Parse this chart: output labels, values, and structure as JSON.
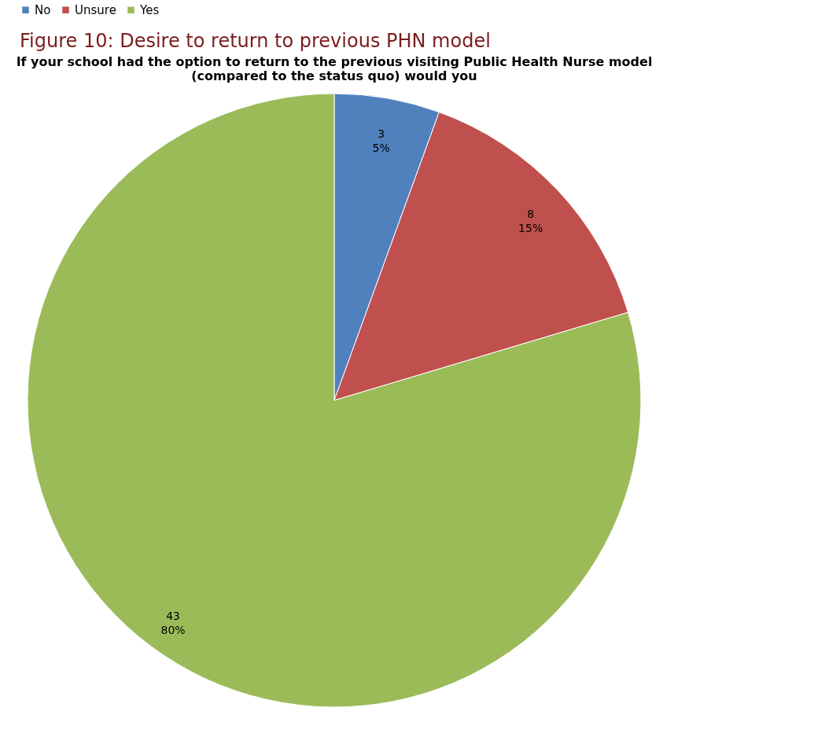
{
  "chart_data": {
    "type": "pie",
    "title": [
      "If your school had the option to return to the previous visiting Public Health Nurse model",
      "(compared to the status quo) would you"
    ],
    "annotations": [
      "Figure 10: Desire to return to previous PHN model"
    ],
    "categories": [
      "No",
      "Unsure",
      "Yes"
    ],
    "values": [
      3,
      8,
      43
    ],
    "colors": [
      "#4f81bd",
      "#c0504d",
      "#9bbb59"
    ],
    "value_labels": [
      "3\n5%",
      "8\n15%",
      "43\n80%"
    ],
    "legend": "top"
  }
}
